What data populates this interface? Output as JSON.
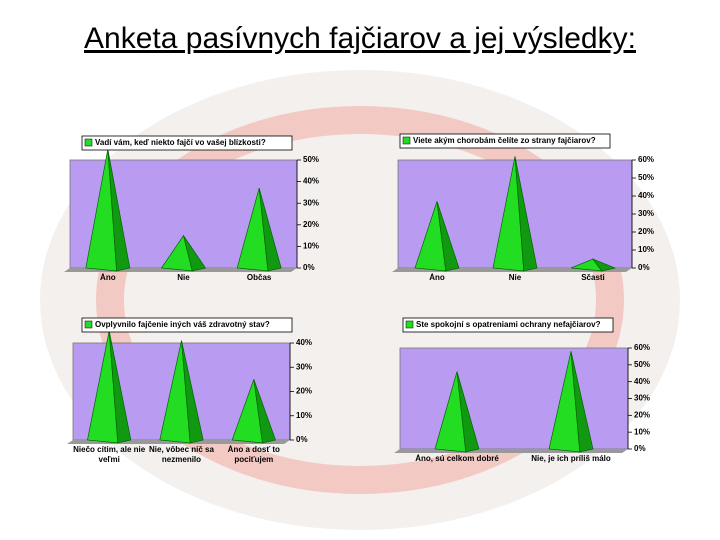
{
  "title": "Anketa pasívnych fajčiarov a jej výsledky:",
  "chart_data": [
    {
      "type": "pyramid",
      "title": "Vadí vám, keď niekto fajčí vo vašej blízkosti?",
      "categories": [
        "Áno",
        "Nie",
        "Občas"
      ],
      "values": [
        55,
        15,
        37
      ],
      "color": "#22dd22",
      "ylim": [
        0,
        50
      ],
      "yticks": [
        {
          "value": 0,
          "label": "0%"
        },
        {
          "value": 10,
          "label": "10%"
        },
        {
          "value": 20,
          "label": "20%"
        },
        {
          "value": 30,
          "label": "30%"
        },
        {
          "value": 40,
          "label": "40%"
        },
        {
          "value": 50,
          "label": "50%"
        }
      ]
    },
    {
      "type": "pyramid",
      "title": "Viete akým chorobám čelíte zo strany fajčiarov?",
      "categories": [
        "Áno",
        "Nie",
        "Sčasti"
      ],
      "values": [
        37,
        62,
        5
      ],
      "color": "#22dd22",
      "ylim": [
        0,
        60
      ],
      "yticks": [
        {
          "value": 0,
          "label": "0%"
        },
        {
          "value": 10,
          "label": "10%"
        },
        {
          "value": 20,
          "label": "20%"
        },
        {
          "value": 30,
          "label": "30%"
        },
        {
          "value": 40,
          "label": "40%"
        },
        {
          "value": 50,
          "label": "50%"
        },
        {
          "value": 60,
          "label": "60%"
        }
      ]
    },
    {
      "type": "pyramid",
      "title": "Ovplyvnilo fajčenie iných váš zdravotný stav?",
      "categories": [
        "Niečo cítim, ale nie veľmi",
        "Nie, vôbec nič sa nezmenilo",
        "Áno a dosť to pociťujem"
      ],
      "values": [
        45,
        41,
        25
      ],
      "color": "#22dd22",
      "ylim": [
        0,
        40
      ],
      "yticks": [
        {
          "value": 0,
          "label": "0%"
        },
        {
          "value": 10,
          "label": "10%"
        },
        {
          "value": 20,
          "label": "20%"
        },
        {
          "value": 30,
          "label": "30%"
        },
        {
          "value": 40,
          "label": "40%"
        }
      ]
    },
    {
      "type": "pyramid",
      "title": "Ste spokojní s opatreniami ochrany nefajčiarov?",
      "categories": [
        "Áno, sú celkom dobré",
        "Nie, je ich príliš málo"
      ],
      "values": [
        46,
        58
      ],
      "color": "#22dd22",
      "ylim": [
        0,
        60
      ],
      "yticks": [
        {
          "value": 0,
          "label": "0%"
        },
        {
          "value": 10,
          "label": "10%"
        },
        {
          "value": 20,
          "label": "20%"
        },
        {
          "value": 30,
          "label": "30%"
        },
        {
          "value": 40,
          "label": "40%"
        },
        {
          "value": 50,
          "label": "50%"
        },
        {
          "value": 60,
          "label": "60%"
        }
      ]
    }
  ]
}
